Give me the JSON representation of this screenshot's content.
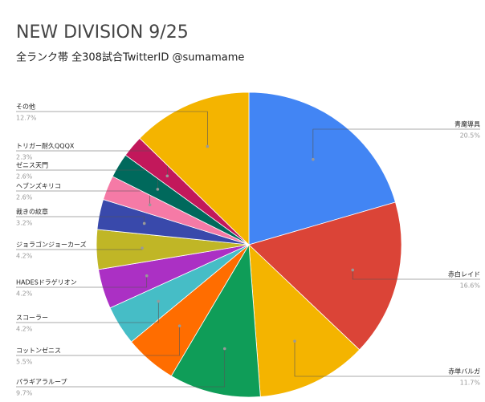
{
  "chart_data": {
    "type": "pie",
    "title": "NEW DIVISION 9/25",
    "subtitle": "全ランク帯 全308試合TwitterID @sumamame",
    "categories": [
      "青魔導具",
      "赤白レイド",
      "赤単バルガ",
      "パラギアラループ",
      "コットンゼニス",
      "スコーラー",
      "HADESドラゲリオン",
      "ジョラゴンジョーカーズ",
      "裁きの紋章",
      "ヘブンズキリコ",
      "ゼニス天門",
      "トリガー耐久QQQX",
      "その他"
    ],
    "values": [
      20.5,
      16.6,
      11.7,
      9.7,
      5.5,
      4.2,
      4.2,
      4.2,
      3.2,
      2.6,
      2.6,
      2.3,
      12.7
    ],
    "value_labels": [
      "20.5%",
      "16.6%",
      "11.7%",
      "9.7%",
      "5.5%",
      "4.2%",
      "4.2%",
      "4.2%",
      "3.2%",
      "2.6%",
      "2.6%",
      "2.3%",
      "12.7%"
    ],
    "colors": [
      "#4285f4",
      "#db4437",
      "#f4b400",
      "#0f9d58",
      "#ff6d00",
      "#46bdc6",
      "#ab30c4",
      "#c0b626",
      "#3949ab",
      "#f57aa6",
      "#00695c",
      "#c2185b",
      "#f4b400"
    ]
  }
}
